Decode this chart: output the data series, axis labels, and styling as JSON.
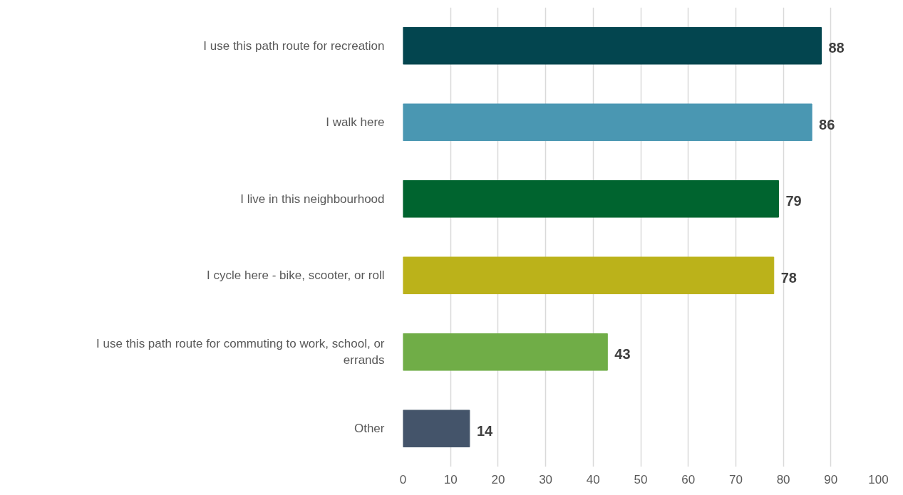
{
  "chart_data": {
    "type": "bar",
    "orientation": "horizontal",
    "categories": [
      "I use this path route for recreation",
      "I walk here",
      "I live in this neighbourhood",
      "I cycle here - bike, scooter, or roll",
      "I use this path route for commuting to work, school, or errands",
      "Other"
    ],
    "values": [
      88,
      86,
      79,
      78,
      43,
      14
    ],
    "colors": [
      "#03454f",
      "#4a97b2",
      "#00642f",
      "#bbb21a",
      "#70ad47",
      "#44546a"
    ],
    "xlim": [
      0,
      100
    ],
    "xticks": [
      0,
      10,
      20,
      30,
      40,
      50,
      60,
      70,
      80,
      90,
      100
    ],
    "grid": "x",
    "data_labels": true
  }
}
